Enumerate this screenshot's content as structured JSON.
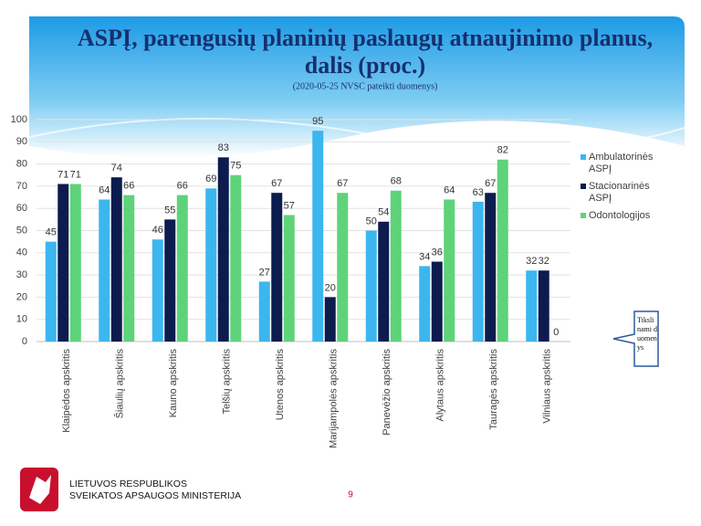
{
  "chart_data": {
    "type": "bar",
    "title": "ASPĮ, parengusių planinių paslaugų atnaujinimo planus, dalis (proc.)",
    "subtitle": "(2020-05-25 NVSC pateikti duomenys)",
    "annotation": "Tikslinami duomenys",
    "categories": [
      "Klaipėdos apskritis",
      "Šiaulių apskritis",
      "Kauno apskritis",
      "Telšių apskritis",
      "Utenos apskritis",
      "Marijampolės apskritis",
      "Panevėžio apskritis",
      "Alytaus apskritis",
      "Tauragės apskritis",
      "Vilniaus apskritis"
    ],
    "series": [
      {
        "name": "Ambulatorinės ASPĮ",
        "color": "#3cb6ef",
        "values": [
          45,
          64,
          46,
          69,
          27,
          95,
          50,
          34,
          63,
          32
        ]
      },
      {
        "name": "Stacionarinės ASPĮ",
        "color": "#0c1c4e",
        "values": [
          71,
          74,
          55,
          83,
          67,
          20,
          54,
          36,
          67,
          32
        ]
      },
      {
        "name": "Odontologijos",
        "color": "#5ed37a",
        "values": [
          71,
          66,
          66,
          75,
          57,
          67,
          68,
          64,
          82,
          0
        ]
      }
    ],
    "ylim": [
      0,
      100
    ],
    "yticks": [
      0,
      10,
      20,
      30,
      40,
      50,
      60,
      70,
      80,
      90,
      100
    ],
    "grid": true,
    "legend": "right"
  },
  "footer": {
    "ministry_line1": "LIETUVOS RESPUBLIKOS",
    "ministry_line2": "SVEIKATOS APSAUGOS MINISTERIJA",
    "page_number": "9"
  }
}
